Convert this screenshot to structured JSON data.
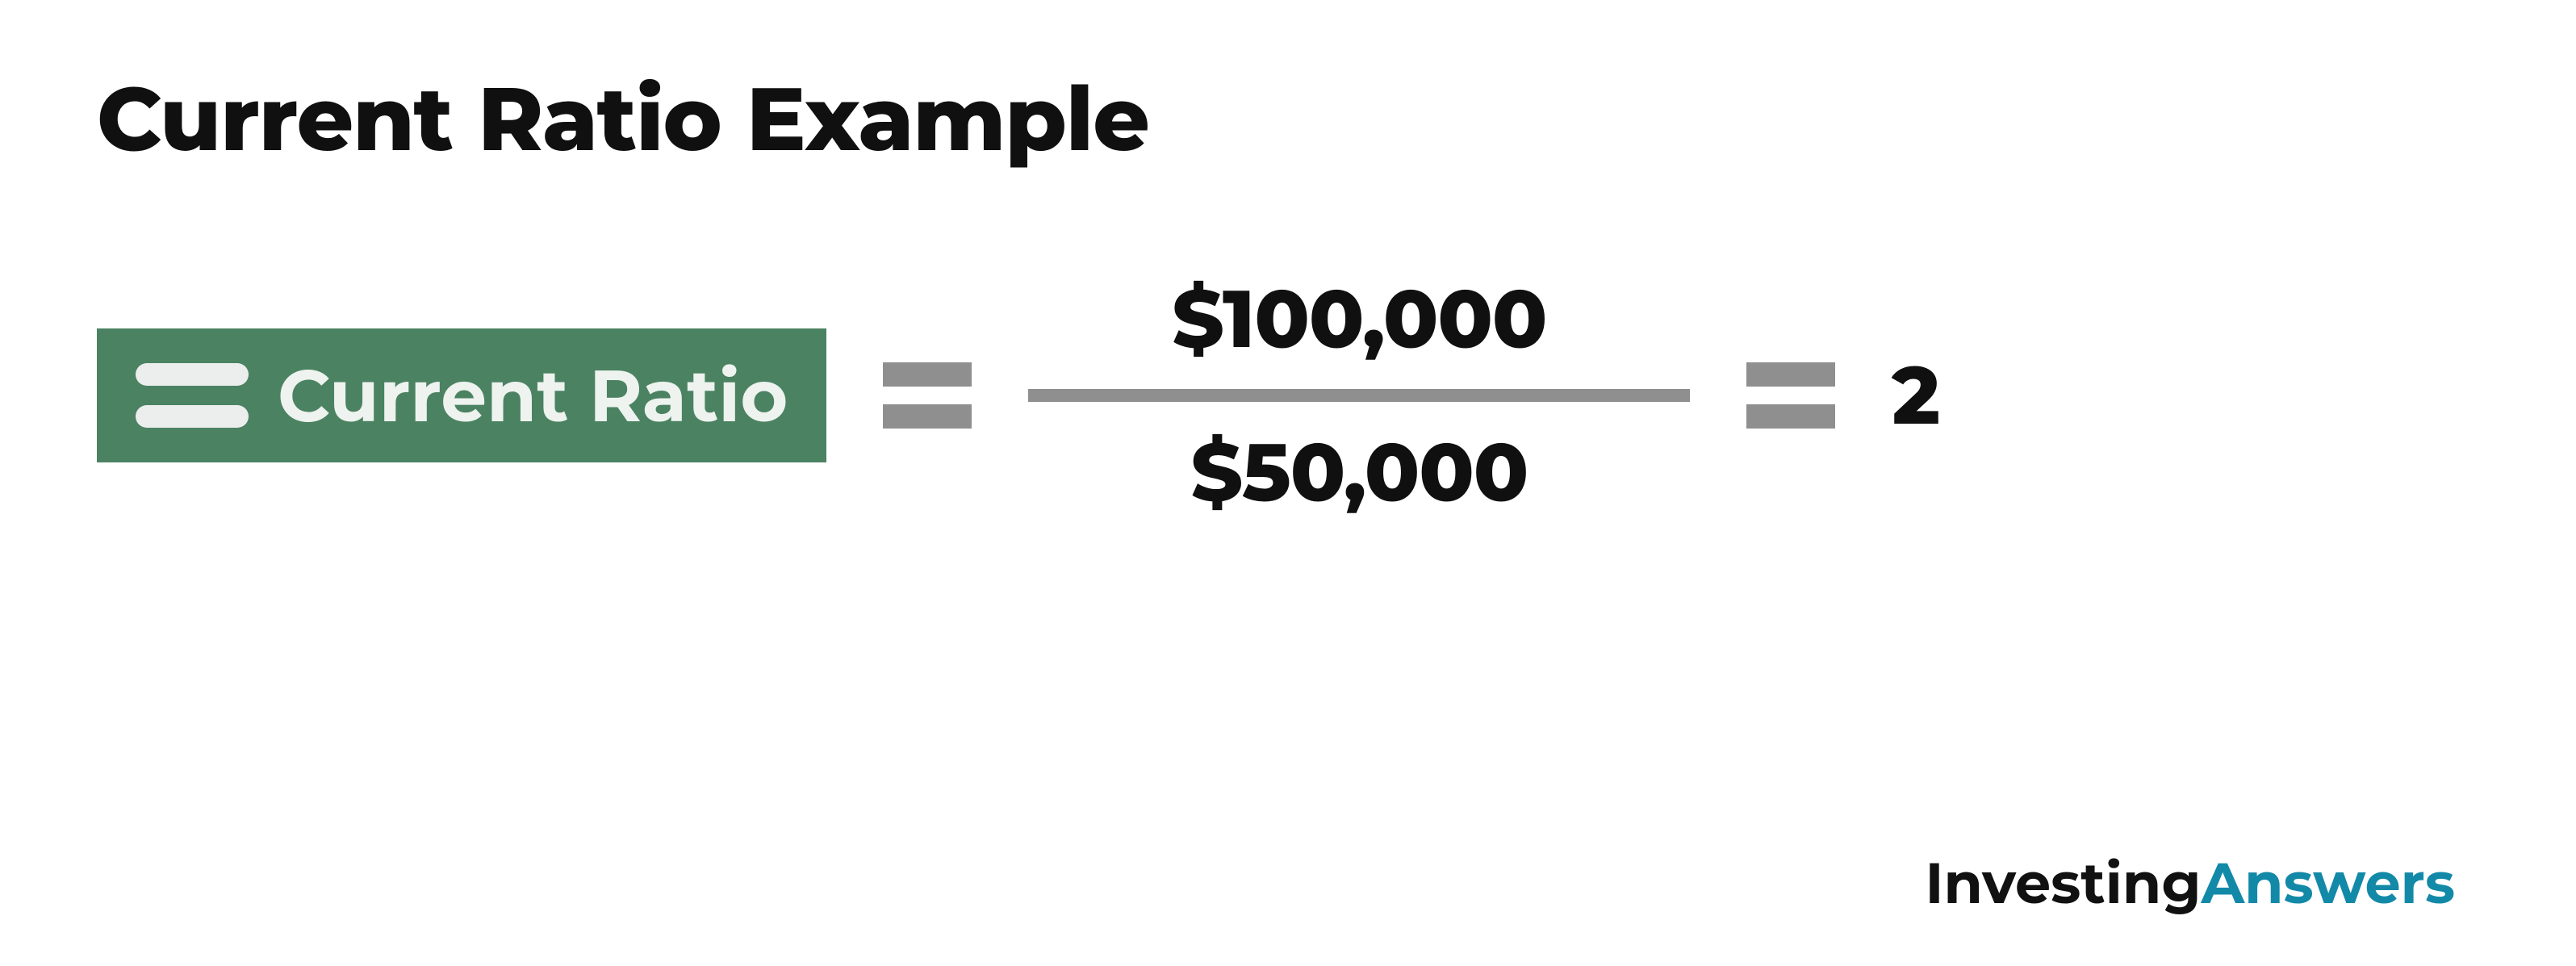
{
  "title": "Current Ratio Example",
  "badge": {
    "label": "Current Ratio",
    "bg_color": "#4b8362",
    "text_color": "#eef3ef",
    "icon_bar_color": "#eceeed"
  },
  "equals_color": "#8f8f8f",
  "fraction": {
    "numerator": "$100,000",
    "denominator": "$50,000",
    "line_color": "#8f8f8f",
    "value_color": "#101010"
  },
  "result": "2",
  "brand": {
    "part1": "Investing",
    "part2": "Answers",
    "part2_color": "#1389a8"
  },
  "background_color": "#ffffff"
}
